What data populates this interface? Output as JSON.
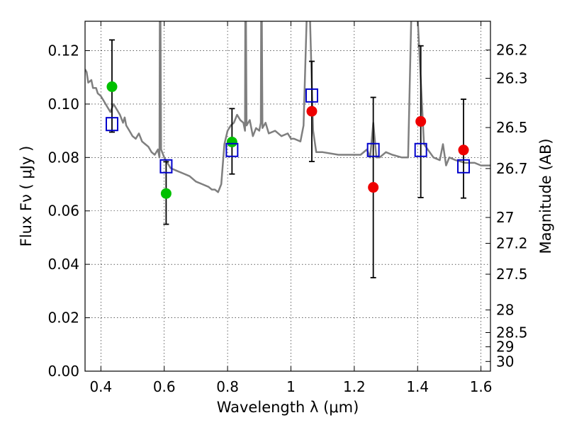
{
  "chart_data": {
    "type": "scatter",
    "title": "",
    "xlabel": "Wavelength  λ (μm)",
    "ylabel": "Flux  Fν  ( μJy )",
    "ylabel_right": "Magnitude (AB)",
    "xlim": [
      0.35,
      1.63
    ],
    "ylim": [
      0.0,
      0.131
    ],
    "grid": true,
    "x_ticks": [
      0.4,
      0.6,
      0.8,
      1.0,
      1.2,
      1.4,
      1.6
    ],
    "x_tick_labels": [
      "0.4",
      "0.6",
      "0.8",
      "1",
      "1.2",
      "1.4",
      "1.6"
    ],
    "y_ticks": [
      0.0,
      0.02,
      0.04,
      0.06,
      0.08,
      0.1,
      0.12
    ],
    "y_tick_labels": [
      "0.00",
      "0.02",
      "0.04",
      "0.06",
      "0.08",
      "0.10",
      "0.12"
    ],
    "right_ticks": [
      26.2,
      26.3,
      26.5,
      26.7,
      27,
      27.2,
      27.5,
      28,
      28.5,
      29,
      30
    ],
    "right_tick_labels": [
      "26.2",
      "26.3",
      "26.5",
      "26.7",
      "27",
      "27.2",
      "27.5",
      "28",
      "28.5",
      "29",
      "30"
    ],
    "series": [
      {
        "kind": "line",
        "color": "#7f7f7f",
        "x": [
          0.35,
          0.355,
          0.36,
          0.37,
          0.375,
          0.385,
          0.39,
          0.4,
          0.41,
          0.42,
          0.43,
          0.44,
          0.45,
          0.46,
          0.47,
          0.475,
          0.48,
          0.49,
          0.5,
          0.51,
          0.52,
          0.53,
          0.54,
          0.55,
          0.56,
          0.57,
          0.58,
          0.585,
          0.586,
          0.588,
          0.59,
          0.6,
          0.61,
          0.62,
          0.64,
          0.66,
          0.68,
          0.7,
          0.72,
          0.74,
          0.75,
          0.76,
          0.77,
          0.78,
          0.79,
          0.8,
          0.81,
          0.82,
          0.83,
          0.84,
          0.85,
          0.855,
          0.856,
          0.858,
          0.86,
          0.87,
          0.88,
          0.89,
          0.9,
          0.905,
          0.906,
          0.908,
          0.91,
          0.92,
          0.93,
          0.95,
          0.97,
          0.99,
          1.0,
          1.01,
          1.03,
          1.04,
          1.05,
          1.06,
          1.07,
          1.08,
          1.1,
          1.15,
          1.2,
          1.22,
          1.24,
          1.25,
          1.26,
          1.27,
          1.28,
          1.3,
          1.32,
          1.35,
          1.37,
          1.38,
          1.4,
          1.42,
          1.45,
          1.47,
          1.48,
          1.49,
          1.5,
          1.52,
          1.55,
          1.58,
          1.6,
          1.63
        ],
        "y": [
          0.113,
          0.112,
          0.108,
          0.109,
          0.106,
          0.106,
          0.104,
          0.103,
          0.101,
          0.099,
          0.097,
          0.1,
          0.098,
          0.096,
          0.093,
          0.095,
          0.092,
          0.09,
          0.088,
          0.087,
          0.089,
          0.086,
          0.085,
          0.084,
          0.082,
          0.081,
          0.083,
          0.08,
          0.133,
          0.133,
          0.083,
          0.08,
          0.078,
          0.076,
          0.075,
          0.074,
          0.073,
          0.071,
          0.07,
          0.069,
          0.068,
          0.068,
          0.067,
          0.07,
          0.085,
          0.09,
          0.092,
          0.093,
          0.096,
          0.094,
          0.093,
          0.09,
          0.133,
          0.133,
          0.092,
          0.094,
          0.088,
          0.091,
          0.09,
          0.093,
          0.133,
          0.133,
          0.091,
          0.093,
          0.089,
          0.09,
          0.088,
          0.089,
          0.087,
          0.087,
          0.086,
          0.092,
          0.133,
          0.133,
          0.09,
          0.082,
          0.082,
          0.081,
          0.081,
          0.081,
          0.083,
          0.08,
          0.093,
          0.08,
          0.08,
          0.082,
          0.081,
          0.08,
          0.08,
          0.133,
          0.133,
          0.085,
          0.08,
          0.079,
          0.085,
          0.077,
          0.08,
          0.079,
          0.078,
          0.078,
          0.077,
          0.077
        ]
      },
      {
        "kind": "open-squares",
        "color": "#0000cc",
        "x": [
          0.435,
          0.606,
          0.814,
          1.066,
          1.26,
          1.41,
          1.545
        ],
        "y": [
          0.0925,
          0.0767,
          0.0828,
          0.1032,
          0.0828,
          0.0828,
          0.0767
        ]
      },
      {
        "kind": "filled-circles",
        "color": "#00c000",
        "x": [
          0.435,
          0.606,
          0.814
        ],
        "y": [
          0.1065,
          0.0665,
          0.0858
        ]
      },
      {
        "kind": "filled-circles",
        "color": "#ee0000",
        "x": [
          1.066,
          1.26,
          1.41,
          1.545
        ],
        "y": [
          0.0973,
          0.0688,
          0.0935,
          0.0828
        ]
      },
      {
        "kind": "errorbars",
        "color": "#000000",
        "x": [
          0.435,
          0.606,
          0.814,
          1.066,
          1.26,
          1.41,
          1.545
        ],
        "low": [
          0.0895,
          0.055,
          0.0738,
          0.0785,
          0.035,
          0.065,
          0.0648
        ],
        "high": [
          0.124,
          0.0784,
          0.0983,
          0.116,
          0.1025,
          0.1218,
          0.1018
        ]
      }
    ]
  }
}
